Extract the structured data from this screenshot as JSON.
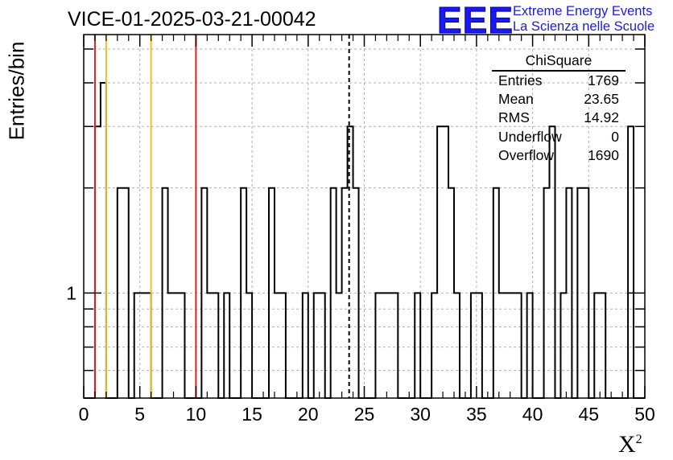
{
  "title": "VICE-01-2025-03-21-00042",
  "logo": {
    "mark": "EEE",
    "line1": "Extreme Energy Events",
    "line2": "La Scienza nelle Scuole"
  },
  "colors": {
    "axis": "#000000",
    "grid": "#b0b0b0",
    "hist": "#000000",
    "red_line": "#e02020",
    "yellow_line": "#f0c020",
    "logo": "#1a1aee"
  },
  "stats": {
    "title": "ChiSquare",
    "rows": [
      {
        "label": "Entries",
        "value": "1769"
      },
      {
        "label": "Mean",
        "value": "23.65"
      },
      {
        "label": "RMS",
        "value": "14.92"
      },
      {
        "label": "Underflow",
        "value": "0"
      },
      {
        "label": "Overflow",
        "value": "1690"
      }
    ]
  },
  "chart_data": {
    "type": "histogram",
    "title": "VICE-01-2025-03-21-00042",
    "xlabel": "X²",
    "ylabel": "Entries/bin",
    "xlim": [
      0,
      50
    ],
    "ylog": true,
    "ylim": [
      0.5,
      5.5
    ],
    "grid": true,
    "bin_width": 0.5,
    "xticks": [
      0,
      5,
      10,
      15,
      20,
      25,
      30,
      35,
      40,
      45,
      50
    ],
    "yticks_labeled": [
      1
    ],
    "bins": [
      {
        "x0": 1.0,
        "x1": 1.5,
        "count": 3
      },
      {
        "x0": 1.5,
        "x1": 2.0,
        "count": 4
      },
      {
        "x0": 3.0,
        "x1": 4.0,
        "count": 2
      },
      {
        "x0": 4.5,
        "x1": 6.0,
        "count": 1
      },
      {
        "x0": 7.0,
        "x1": 7.5,
        "count": 2
      },
      {
        "x0": 7.5,
        "x1": 9.0,
        "count": 1
      },
      {
        "x0": 10.5,
        "x1": 11.0,
        "count": 2
      },
      {
        "x0": 11.0,
        "x1": 12.0,
        "count": 1
      },
      {
        "x0": 12.5,
        "x1": 13.0,
        "count": 1
      },
      {
        "x0": 14.0,
        "x1": 14.5,
        "count": 2
      },
      {
        "x0": 14.5,
        "x1": 15.0,
        "count": 1
      },
      {
        "x0": 16.5,
        "x1": 17.0,
        "count": 2
      },
      {
        "x0": 17.0,
        "x1": 18.0,
        "count": 1
      },
      {
        "x0": 19.5,
        "x1": 20.0,
        "count": 1
      },
      {
        "x0": 20.5,
        "x1": 21.5,
        "count": 1
      },
      {
        "x0": 22.0,
        "x1": 22.5,
        "count": 2
      },
      {
        "x0": 22.5,
        "x1": 23.0,
        "count": 1
      },
      {
        "x0": 23.0,
        "x1": 23.5,
        "count": 2
      },
      {
        "x0": 23.5,
        "x1": 24.0,
        "count": 3
      },
      {
        "x0": 24.0,
        "x1": 24.5,
        "count": 2
      },
      {
        "x0": 26.0,
        "x1": 28.0,
        "count": 1
      },
      {
        "x0": 29.5,
        "x1": 30.0,
        "count": 1
      },
      {
        "x0": 31.0,
        "x1": 31.5,
        "count": 1
      },
      {
        "x0": 31.5,
        "x1": 32.5,
        "count": 3
      },
      {
        "x0": 32.5,
        "x1": 33.0,
        "count": 2
      },
      {
        "x0": 33.0,
        "x1": 33.5,
        "count": 1
      },
      {
        "x0": 34.5,
        "x1": 35.5,
        "count": 1
      },
      {
        "x0": 36.5,
        "x1": 37.0,
        "count": 2
      },
      {
        "x0": 37.0,
        "x1": 39.0,
        "count": 1
      },
      {
        "x0": 39.5,
        "x1": 40.0,
        "count": 1
      },
      {
        "x0": 41.0,
        "x1": 41.5,
        "count": 2
      },
      {
        "x0": 41.5,
        "x1": 42.0,
        "count": 3
      },
      {
        "x0": 42.5,
        "x1": 43.0,
        "count": 1
      },
      {
        "x0": 43.0,
        "x1": 43.5,
        "count": 2
      },
      {
        "x0": 44.0,
        "x1": 44.5,
        "count": 2
      },
      {
        "x0": 44.5,
        "x1": 45.0,
        "count": 2
      },
      {
        "x0": 45.5,
        "x1": 46.5,
        "count": 1
      },
      {
        "x0": 48.5,
        "x1": 49.0,
        "count": 3
      }
    ],
    "vertical_lines": [
      {
        "x": 1,
        "color": "red",
        "style": "solid"
      },
      {
        "x": 2,
        "color": "yellow",
        "style": "solid"
      },
      {
        "x": 6,
        "color": "yellow",
        "style": "solid"
      },
      {
        "x": 10,
        "color": "red",
        "style": "solid"
      },
      {
        "x": 23.65,
        "color": "black",
        "style": "dashed"
      }
    ]
  }
}
